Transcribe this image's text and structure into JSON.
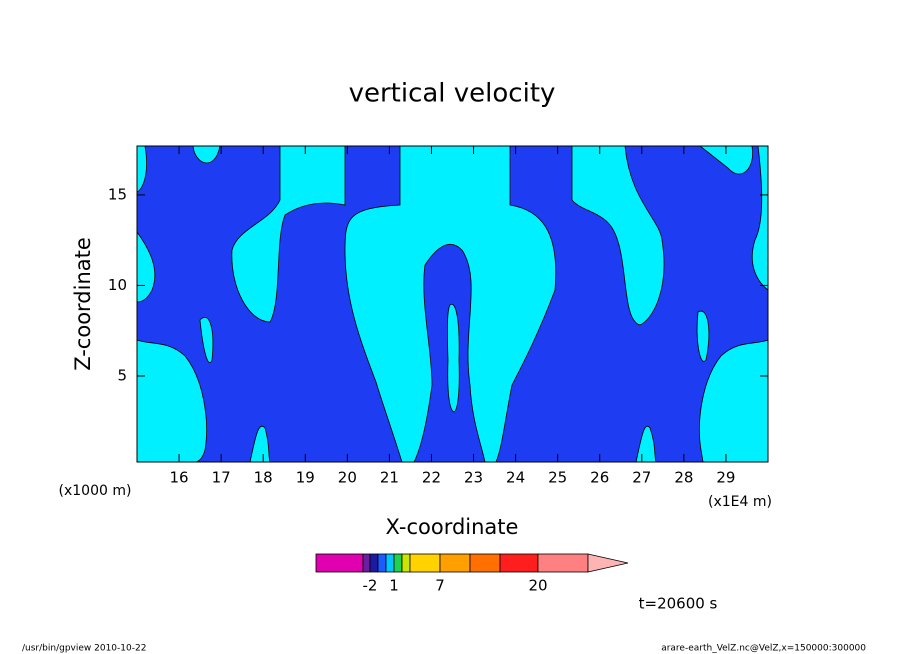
{
  "chart_data": {
    "type": "contour",
    "title": "vertical velocity",
    "x_label": "X-coordinate",
    "y_label": "Z-coordinate",
    "x_unit": "(x1E4 m)",
    "y_unit": "(x1000 m)",
    "xlim": [
      15,
      30
    ],
    "xticks": [
      16,
      17,
      18,
      19,
      20,
      21,
      22,
      23,
      24,
      25,
      26,
      27,
      28,
      29
    ],
    "ylim": [
      0.25,
      17.7
    ],
    "yticks": [
      5,
      10,
      15
    ],
    "region_colors": [
      "#1e3cf2",
      "#00f0ff"
    ],
    "colorbar": {
      "colors": [
        "#e000b0",
        "#6a1fa0",
        "#1e1aa0",
        "#1a5cff",
        "#00c8ff",
        "#20d050",
        "#c8e600",
        "#ffd200",
        "#ffa000",
        "#ff7000",
        "#ff1e1e",
        "#ff8080",
        "#ffb4b4"
      ],
      "levels": [
        null,
        null,
        -2,
        null,
        null,
        1,
        null,
        null,
        7,
        null,
        null,
        20,
        null
      ]
    },
    "annotation": "t=20600 s",
    "footer_left": "/usr/bin/gpview  2010-10-22",
    "footer_right": "arare-earth_VelZ.nc@VelZ,x=150000:300000"
  }
}
